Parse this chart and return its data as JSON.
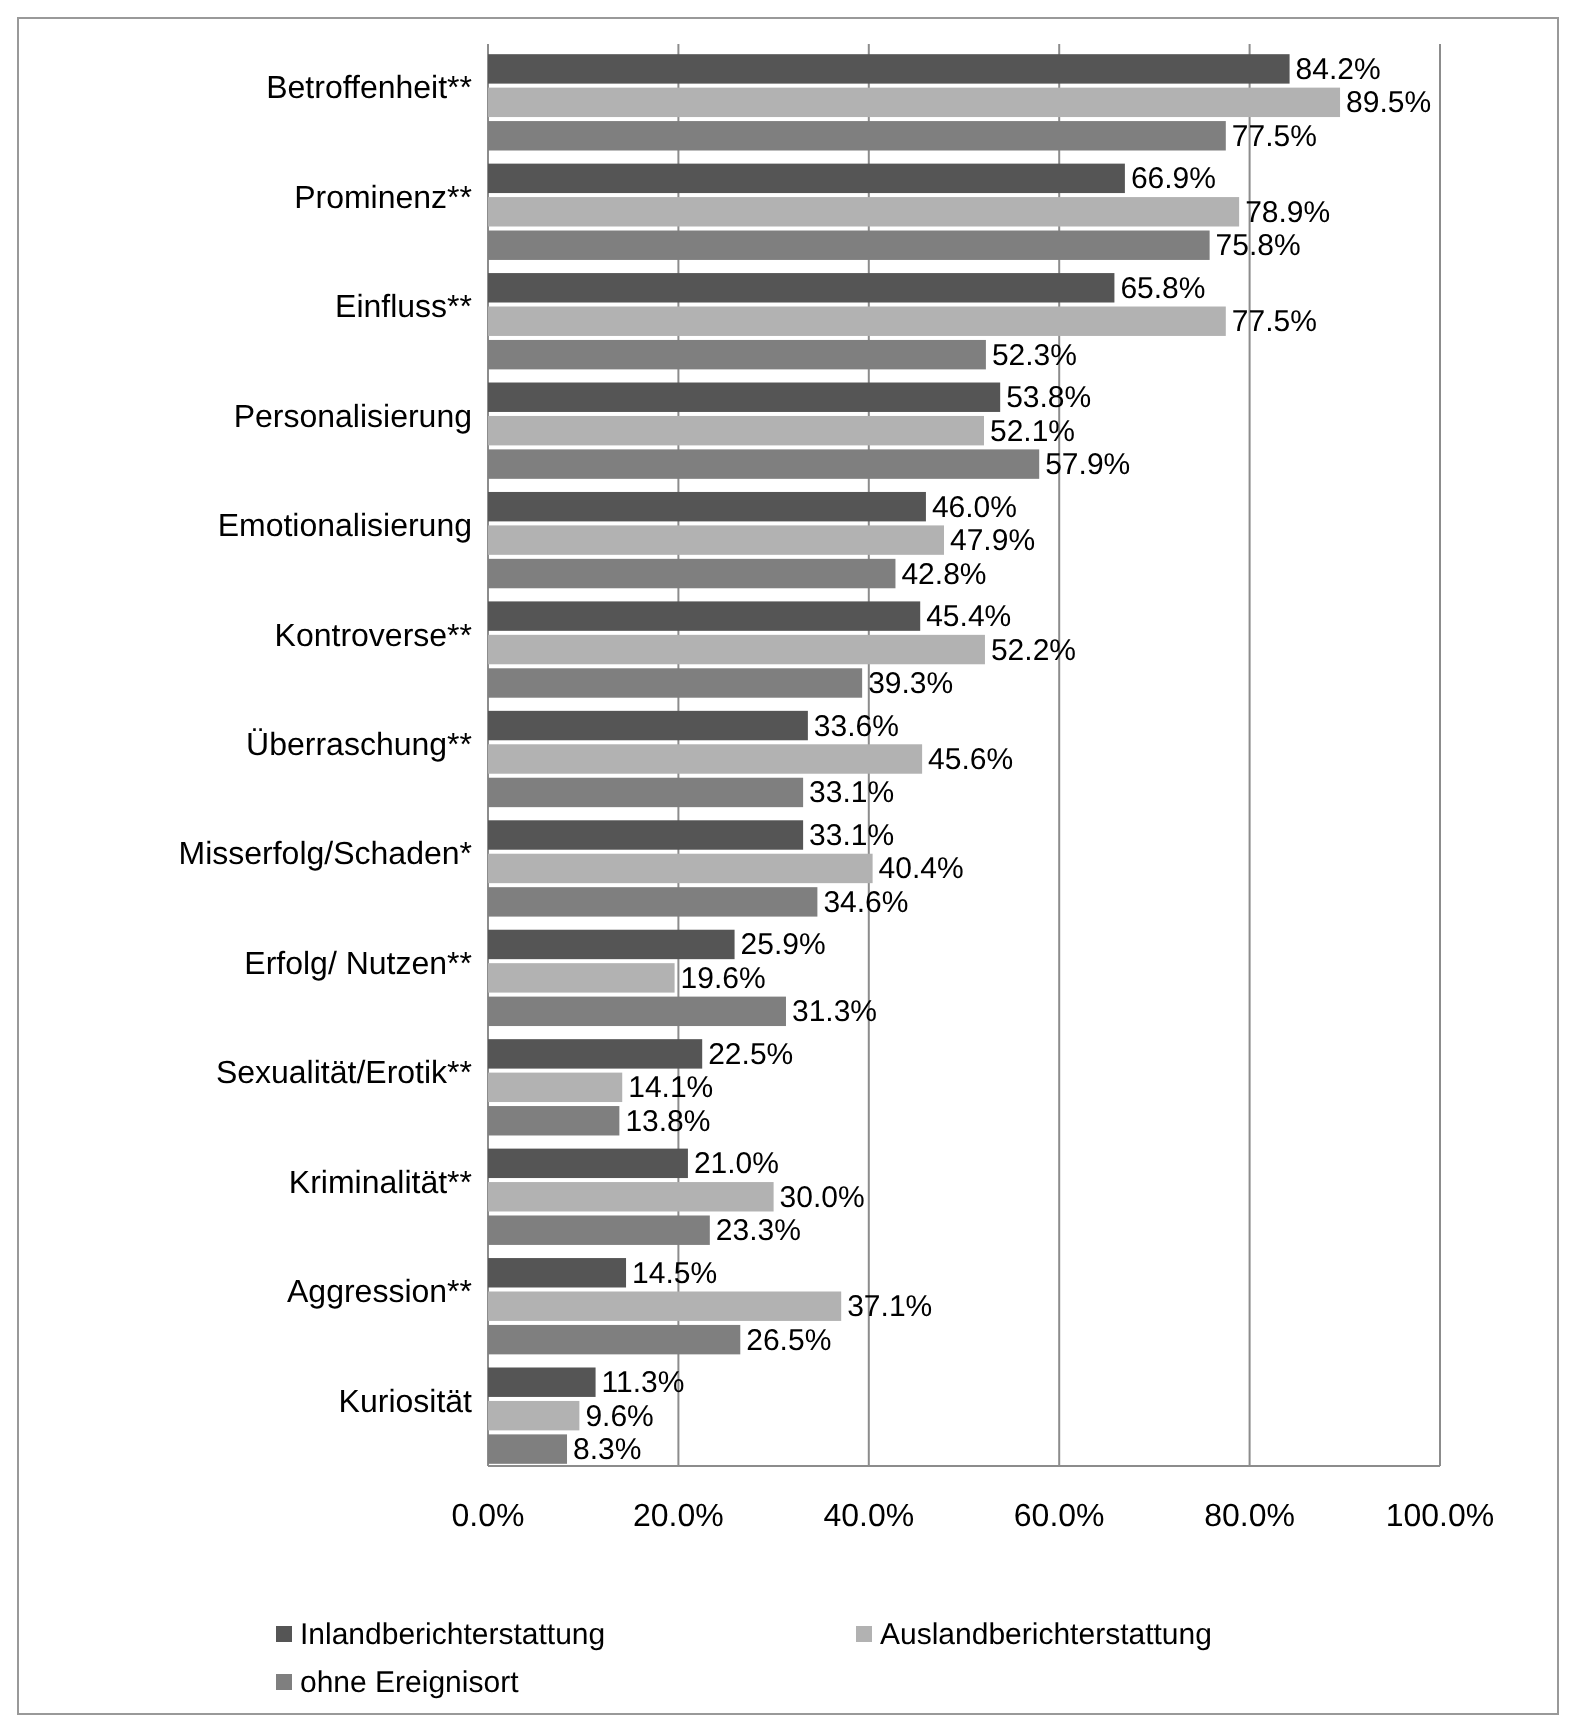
{
  "chart_data": {
    "type": "bar",
    "orientation": "horizontal",
    "categories": [
      "Betroffenheit**",
      "Prominenz**",
      "Einfluss**",
      "Personalisierung",
      "Emotionalisierung",
      "Kontroverse**",
      "Überraschung**",
      "Misserfolg/Schaden*",
      "Erfolg/ Nutzen**",
      "Sexualität/Erotik**",
      "Kriminalität**",
      "Aggression**",
      "Kuriosität"
    ],
    "series": [
      {
        "name": "Inlandberichterstattung",
        "color": "#555555",
        "values": [
          84.2,
          66.9,
          65.8,
          53.8,
          46.0,
          45.4,
          33.6,
          33.1,
          25.9,
          22.5,
          21.0,
          14.5,
          11.3
        ]
      },
      {
        "name": "Auslandberichterstattung",
        "color": "#b2b2b2",
        "values": [
          89.5,
          78.9,
          77.5,
          52.1,
          47.9,
          52.2,
          45.6,
          40.4,
          19.6,
          14.1,
          30.0,
          37.1,
          9.6
        ]
      },
      {
        "name": "ohne Ereignisort",
        "color": "#7f7f7f",
        "values": [
          77.5,
          75.8,
          52.3,
          57.9,
          42.8,
          39.3,
          33.1,
          34.6,
          31.3,
          13.8,
          23.3,
          26.5,
          8.3
        ]
      }
    ],
    "xlim": [
      0,
      100
    ],
    "xticks": [
      {
        "value": 0,
        "label": "0.0%"
      },
      {
        "value": 20,
        "label": "20.0%"
      },
      {
        "value": 40,
        "label": "40.0%"
      },
      {
        "value": 60,
        "label": "60.0%"
      },
      {
        "value": 80,
        "label": "80.0%"
      },
      {
        "value": 100,
        "label": "100.0%"
      }
    ],
    "value_labels": [
      [
        "84.2%",
        "66.9%",
        "65.8%",
        "53.8%",
        "46.0%",
        "45.4%",
        "33.6%",
        "33.1%",
        "25.9%",
        "22.5%",
        "21.0%",
        "14.5%",
        "11.3%"
      ],
      [
        "89.5%",
        "78.9%",
        "77.5%",
        "52.1%",
        "47.9%",
        "52.2%",
        "45.6%",
        "40.4%",
        "19.6%",
        "14.1%",
        "30.0%",
        "37.1%",
        "9.6%"
      ],
      [
        "77.5%",
        "75.8%",
        "52.3%",
        "57.9%",
        "42.8%",
        "39.3%",
        "33.1%",
        "34.6%",
        "31.3%",
        "13.8%",
        "23.3%",
        "26.5%",
        "8.3%"
      ]
    ],
    "grid": "x",
    "legend": "bottom"
  }
}
